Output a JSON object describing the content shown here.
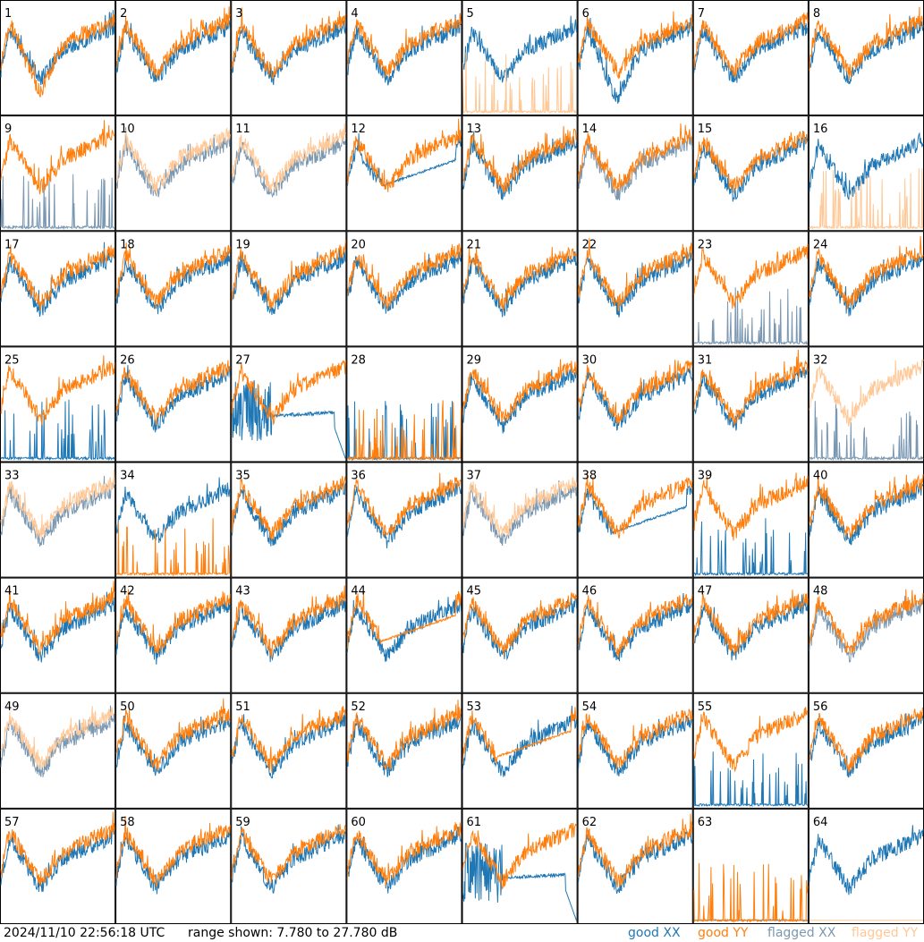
{
  "footer": {
    "timestamp": "2024/11/10 22:56:18 UTC",
    "range_text": "range shown: 7.780 to 27.780 dB"
  },
  "legend": [
    {
      "label": "good XX",
      "color": "#1f77b4"
    },
    {
      "label": "good YY",
      "color": "#ff7f0e"
    },
    {
      "label": "flagged XX",
      "color": "#7a98b2"
    },
    {
      "label": "flagged YY",
      "color": "#ffc896"
    }
  ],
  "chart_data": {
    "type": "line",
    "ylim": [
      7.78,
      27.78
    ],
    "grid": "8x8 small multiples",
    "panels": [
      {
        "id": "1",
        "xx": "good",
        "yy": "good",
        "xx_style": "normal",
        "yy_style": "sag"
      },
      {
        "id": "2",
        "xx": "good",
        "yy": "good",
        "xx_style": "normal",
        "yy_style": "normal"
      },
      {
        "id": "3",
        "xx": "good",
        "yy": "good",
        "xx_style": "normal",
        "yy_style": "normal"
      },
      {
        "id": "4",
        "xx": "good",
        "yy": "good",
        "xx_style": "normal",
        "yy_style": "normal"
      },
      {
        "id": "5",
        "xx": "good",
        "yy": "flagged",
        "xx_style": "normal",
        "yy_style": "spiky"
      },
      {
        "id": "6",
        "xx": "good",
        "yy": "good",
        "xx_style": "sag",
        "yy_style": "normal"
      },
      {
        "id": "7",
        "xx": "good",
        "yy": "good",
        "xx_style": "normal",
        "yy_style": "normal"
      },
      {
        "id": "8",
        "xx": "good",
        "yy": "good",
        "xx_style": "normal",
        "yy_style": "normal"
      },
      {
        "id": "9",
        "xx": "flagged",
        "yy": "good",
        "xx_style": "spiky",
        "yy_style": "normal"
      },
      {
        "id": "10",
        "xx": "flagged",
        "yy": "flagged",
        "xx_style": "normal",
        "yy_style": "normal"
      },
      {
        "id": "11",
        "xx": "flagged",
        "yy": "flagged",
        "xx_style": "normal",
        "yy_style": "normal"
      },
      {
        "id": "12",
        "xx": "good",
        "yy": "good",
        "xx_style": "smooth",
        "yy_style": "normal"
      },
      {
        "id": "13",
        "xx": "good",
        "yy": "good",
        "xx_style": "normal",
        "yy_style": "normal"
      },
      {
        "id": "14",
        "xx": "flagged",
        "yy": "good",
        "xx_style": "normal",
        "yy_style": "normal"
      },
      {
        "id": "15",
        "xx": "good",
        "yy": "good",
        "xx_style": "normal",
        "yy_style": "normal"
      },
      {
        "id": "16",
        "xx": "good",
        "yy": "flagged",
        "xx_style": "normal",
        "yy_style": "spiky"
      },
      {
        "id": "17",
        "xx": "good",
        "yy": "good",
        "xx_style": "normal",
        "yy_style": "normal"
      },
      {
        "id": "18",
        "xx": "good",
        "yy": "good",
        "xx_style": "normal",
        "yy_style": "normal"
      },
      {
        "id": "19",
        "xx": "good",
        "yy": "good",
        "xx_style": "normal",
        "yy_style": "normal"
      },
      {
        "id": "20",
        "xx": "good",
        "yy": "good",
        "xx_style": "normal",
        "yy_style": "normal"
      },
      {
        "id": "21",
        "xx": "good",
        "yy": "good",
        "xx_style": "normal",
        "yy_style": "normal"
      },
      {
        "id": "22",
        "xx": "good",
        "yy": "good",
        "xx_style": "normal",
        "yy_style": "normal"
      },
      {
        "id": "23",
        "xx": "flagged",
        "yy": "good",
        "xx_style": "spiky",
        "yy_style": "normal"
      },
      {
        "id": "24",
        "xx": "good",
        "yy": "good",
        "xx_style": "normal",
        "yy_style": "normal"
      },
      {
        "id": "25",
        "xx": "good",
        "yy": "good",
        "xx_style": "spiky",
        "yy_style": "normal"
      },
      {
        "id": "26",
        "xx": "good",
        "yy": "good",
        "xx_style": "normal",
        "yy_style": "normal"
      },
      {
        "id": "27",
        "xx": "good",
        "yy": "good",
        "xx_style": "weird",
        "yy_style": "normal"
      },
      {
        "id": "28",
        "xx": "good",
        "yy": "good",
        "xx_style": "spiky",
        "yy_style": "spiky"
      },
      {
        "id": "29",
        "xx": "good",
        "yy": "good",
        "xx_style": "normal",
        "yy_style": "normal"
      },
      {
        "id": "30",
        "xx": "good",
        "yy": "good",
        "xx_style": "normal",
        "yy_style": "normal"
      },
      {
        "id": "31",
        "xx": "good",
        "yy": "good",
        "xx_style": "normal",
        "yy_style": "normal"
      },
      {
        "id": "32",
        "xx": "flagged",
        "yy": "flagged",
        "xx_style": "spiky",
        "yy_style": "normal"
      },
      {
        "id": "33",
        "xx": "flagged",
        "yy": "flagged",
        "xx_style": "normal",
        "yy_style": "normal"
      },
      {
        "id": "34",
        "xx": "good",
        "yy": "good",
        "xx_style": "normal",
        "yy_style": "spiky"
      },
      {
        "id": "35",
        "xx": "good",
        "yy": "good",
        "xx_style": "normal",
        "yy_style": "normal"
      },
      {
        "id": "36",
        "xx": "good",
        "yy": "good",
        "xx_style": "normal",
        "yy_style": "normal"
      },
      {
        "id": "37",
        "xx": "flagged",
        "yy": "flagged",
        "xx_style": "normal",
        "yy_style": "normal"
      },
      {
        "id": "38",
        "xx": "good",
        "yy": "good",
        "xx_style": "smooth",
        "yy_style": "normal"
      },
      {
        "id": "39",
        "xx": "good",
        "yy": "good",
        "xx_style": "spiky",
        "yy_style": "normal"
      },
      {
        "id": "40",
        "xx": "good",
        "yy": "good",
        "xx_style": "normal",
        "yy_style": "normal"
      },
      {
        "id": "41",
        "xx": "good",
        "yy": "good",
        "xx_style": "normal",
        "yy_style": "normal"
      },
      {
        "id": "42",
        "xx": "good",
        "yy": "good",
        "xx_style": "normal",
        "yy_style": "normal"
      },
      {
        "id": "43",
        "xx": "good",
        "yy": "good",
        "xx_style": "normal",
        "yy_style": "normal"
      },
      {
        "id": "44",
        "xx": "good",
        "yy": "good",
        "xx_style": "normal",
        "yy_style": "smooth"
      },
      {
        "id": "45",
        "xx": "good",
        "yy": "good",
        "xx_style": "normal",
        "yy_style": "normal"
      },
      {
        "id": "46",
        "xx": "good",
        "yy": "good",
        "xx_style": "normal",
        "yy_style": "normal"
      },
      {
        "id": "47",
        "xx": "good",
        "yy": "good",
        "xx_style": "normal",
        "yy_style": "normal"
      },
      {
        "id": "48",
        "xx": "flagged",
        "yy": "good",
        "xx_style": "normal",
        "yy_style": "normal"
      },
      {
        "id": "49",
        "xx": "flagged",
        "yy": "flagged",
        "xx_style": "normal",
        "yy_style": "normal"
      },
      {
        "id": "50",
        "xx": "good",
        "yy": "good",
        "xx_style": "normal",
        "yy_style": "normal"
      },
      {
        "id": "51",
        "xx": "good",
        "yy": "good",
        "xx_style": "normal",
        "yy_style": "normal"
      },
      {
        "id": "52",
        "xx": "good",
        "yy": "good",
        "xx_style": "normal",
        "yy_style": "normal"
      },
      {
        "id": "53",
        "xx": "good",
        "yy": "good",
        "xx_style": "normal",
        "yy_style": "smooth"
      },
      {
        "id": "54",
        "xx": "good",
        "yy": "good",
        "xx_style": "normal",
        "yy_style": "normal"
      },
      {
        "id": "55",
        "xx": "good",
        "yy": "good",
        "xx_style": "spiky",
        "yy_style": "normal"
      },
      {
        "id": "56",
        "xx": "good",
        "yy": "good",
        "xx_style": "normal",
        "yy_style": "normal"
      },
      {
        "id": "57",
        "xx": "good",
        "yy": "good",
        "xx_style": "normal",
        "yy_style": "normal"
      },
      {
        "id": "58",
        "xx": "good",
        "yy": "good",
        "xx_style": "normal",
        "yy_style": "normal"
      },
      {
        "id": "59",
        "xx": "good",
        "yy": "good",
        "xx_style": "normal",
        "yy_style": "normal"
      },
      {
        "id": "60",
        "xx": "good",
        "yy": "good",
        "xx_style": "normal",
        "yy_style": "normal"
      },
      {
        "id": "61",
        "xx": "good",
        "yy": "good",
        "xx_style": "weird",
        "yy_style": "normal"
      },
      {
        "id": "62",
        "xx": "good",
        "yy": "good",
        "xx_style": "normal",
        "yy_style": "normal"
      },
      {
        "id": "63",
        "xx": "good",
        "yy": "good",
        "xx_style": "flat",
        "yy_style": "spiky"
      },
      {
        "id": "64",
        "xx": "good",
        "yy": "flagged",
        "xx_style": "normal",
        "yy_style": "flat"
      }
    ]
  }
}
